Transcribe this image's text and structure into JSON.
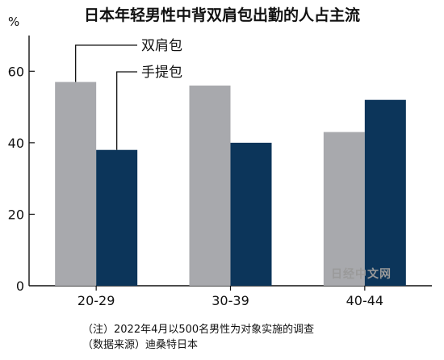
{
  "page": {
    "footnote_note": "（注）2022年4月以500名男性为对象实施的调查",
    "footnote_source": "（数据来源）迪桑特日本",
    "watermark": "日经中文网"
  },
  "colors": {
    "backpack": "#a8a9ad",
    "handbag": "#0c355a"
  },
  "chart_data": {
    "type": "bar",
    "title": "日本年轻男性中背双肩包出勤的人占主流",
    "unit_label": "%",
    "categories": [
      "20-29",
      "30-39",
      "40-44"
    ],
    "series": [
      {
        "name": "双肩包",
        "values": [
          57,
          56,
          43
        ]
      },
      {
        "name": "手提包",
        "values": [
          38,
          40,
          52
        ]
      }
    ],
    "yticks": [
      0,
      20,
      40,
      60
    ],
    "ylim": [
      0,
      70
    ],
    "grid": false,
    "legend": "callout labels top-left"
  }
}
